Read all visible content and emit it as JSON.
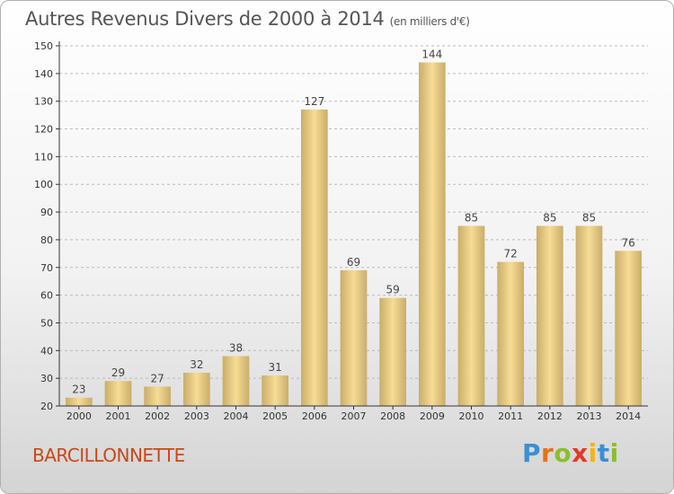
{
  "title": "Autres Revenus Divers de 2000 à 2014",
  "subtitle": "(en milliers d'€)",
  "commune": "BARCILLONNETTE",
  "logo": {
    "letters": [
      "P",
      "r",
      "o",
      "x",
      "i",
      "t",
      "i"
    ],
    "colors": [
      "#3a8fd6",
      "#e2731f",
      "#8cbf2a",
      "#e23a2a",
      "#f2b41c",
      "#3a8fd6",
      "#8cbf2a"
    ]
  },
  "colors": {
    "bar_light": "#f7dc95",
    "bar_dark": "#c9ad6a",
    "axis": "#333333",
    "grid": "#bbbbbb"
  },
  "chart_data": {
    "type": "bar",
    "categories": [
      "2000",
      "2001",
      "2002",
      "2003",
      "2004",
      "2005",
      "2006",
      "2007",
      "2008",
      "2009",
      "2010",
      "2011",
      "2012",
      "2013",
      "2014"
    ],
    "values": [
      23,
      29,
      27,
      32,
      38,
      31,
      127,
      69,
      59,
      144,
      85,
      72,
      85,
      85,
      76
    ],
    "ylim": [
      20,
      150
    ],
    "yticks": [
      20,
      30,
      40,
      50,
      60,
      70,
      80,
      90,
      100,
      110,
      120,
      130,
      140,
      150
    ],
    "grid": "horizontal dashed",
    "data_labels": true
  }
}
